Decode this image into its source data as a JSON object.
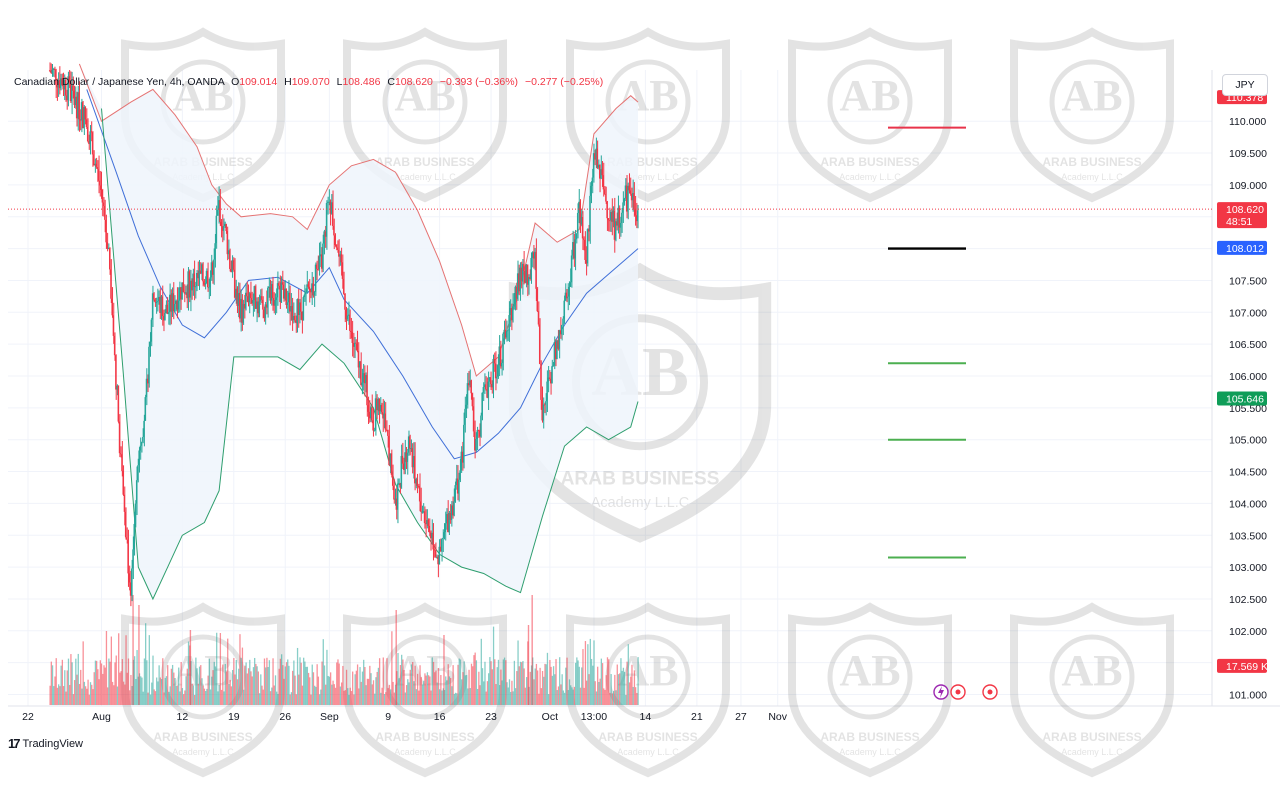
{
  "legend": {
    "symbol": "Canadian Dollar / Japanese Yen, 4h, OANDA",
    "o_label": "O",
    "o": "109.014",
    "h_label": "H",
    "h": "109.070",
    "l_label": "L",
    "l": "108.486",
    "c_label": "C",
    "c": "108.620",
    "change": "−0.393 (−0.36%)",
    "change2": "−0.277 (−0.25%)"
  },
  "currency_button": "JPY",
  "branding": {
    "tradingview": "TradingView",
    "watermark_line1": "ARAB BUSINESS",
    "watermark_line2": "Academy L.L.C"
  },
  "colors": {
    "up": "#26a69a",
    "down": "#f23645",
    "upper_band": "#e57373",
    "middle_band": "#3f6fd8",
    "lower_band": "#2e9e6e",
    "band_fill": "#eef4fb",
    "hline_red": "#e8334a",
    "hline_black": "#000000",
    "hline_green": "#4caf50",
    "blue_badge": "#2962ff",
    "green_badge": "#0f9d58"
  },
  "chart_data": {
    "type": "candlestick",
    "instrument": "Canadian Dollar / Japanese Yen",
    "timeframe": "4h",
    "source": "OANDA",
    "y_ticks": [
      "101.000",
      "101.500",
      "102.000",
      "102.500",
      "103.000",
      "103.500",
      "104.000",
      "104.500",
      "105.000",
      "105.500",
      "106.000",
      "106.500",
      "107.000",
      "107.500",
      "108.000",
      "108.500",
      "109.000",
      "109.500",
      "110.000"
    ],
    "ylim": [
      100.9,
      110.95
    ],
    "x_ticks": [
      {
        "label": "22",
        "day": 0
      },
      {
        "label": "Aug",
        "day": 10
      },
      {
        "label": "12",
        "day": 21
      },
      {
        "label": "19",
        "day": 28
      },
      {
        "label": "26",
        "day": 35
      },
      {
        "label": "Sep",
        "day": 41
      },
      {
        "label": "9",
        "day": 49
      },
      {
        "label": "16",
        "day": 56
      },
      {
        "label": "23",
        "day": 63
      },
      {
        "label": "Oct",
        "day": 71
      },
      {
        "label": "13:00",
        "day": 77
      },
      {
        "label": "14",
        "day": 84
      },
      {
        "label": "21",
        "day": 91
      },
      {
        "label": "27",
        "day": 97
      },
      {
        "label": "Nov",
        "day": 102
      }
    ],
    "price_path": [
      {
        "day": 3,
        "price": 110.8
      },
      {
        "day": 5,
        "price": 110.6
      },
      {
        "day": 8,
        "price": 110.0
      },
      {
        "day": 10,
        "price": 108.9
      },
      {
        "day": 11,
        "price": 108.0
      },
      {
        "day": 12,
        "price": 106.0
      },
      {
        "day": 13,
        "price": 104.0
      },
      {
        "day": 14,
        "price": 102.6
      },
      {
        "day": 15,
        "price": 104.8
      },
      {
        "day": 16,
        "price": 105.5
      },
      {
        "day": 17,
        "price": 107.3
      },
      {
        "day": 18,
        "price": 107.1
      },
      {
        "day": 19,
        "price": 107.0
      },
      {
        "day": 21,
        "price": 107.4
      },
      {
        "day": 23,
        "price": 107.5
      },
      {
        "day": 25,
        "price": 107.6
      },
      {
        "day": 26,
        "price": 108.7
      },
      {
        "day": 27,
        "price": 108.2
      },
      {
        "day": 28,
        "price": 107.5
      },
      {
        "day": 29,
        "price": 107.0
      },
      {
        "day": 30,
        "price": 107.3
      },
      {
        "day": 32,
        "price": 107.1
      },
      {
        "day": 34,
        "price": 107.4
      },
      {
        "day": 35,
        "price": 107.2
      },
      {
        "day": 37,
        "price": 107.0
      },
      {
        "day": 39,
        "price": 107.5
      },
      {
        "day": 40,
        "price": 107.8
      },
      {
        "day": 41,
        "price": 108.9
      },
      {
        "day": 42,
        "price": 108.1
      },
      {
        "day": 43,
        "price": 107.3
      },
      {
        "day": 44,
        "price": 106.6
      },
      {
        "day": 45,
        "price": 106.2
      },
      {
        "day": 46,
        "price": 105.8
      },
      {
        "day": 47,
        "price": 105.3
      },
      {
        "day": 48,
        "price": 105.7
      },
      {
        "day": 49,
        "price": 104.9
      },
      {
        "day": 50,
        "price": 104.0
      },
      {
        "day": 51,
        "price": 104.7
      },
      {
        "day": 52,
        "price": 105.0
      },
      {
        "day": 53,
        "price": 104.2
      },
      {
        "day": 54,
        "price": 103.8
      },
      {
        "day": 55,
        "price": 103.5
      },
      {
        "day": 56,
        "price": 103.1
      },
      {
        "day": 57,
        "price": 103.7
      },
      {
        "day": 58,
        "price": 104.1
      },
      {
        "day": 59,
        "price": 104.6
      },
      {
        "day": 60,
        "price": 106.0
      },
      {
        "day": 61,
        "price": 104.8
      },
      {
        "day": 62,
        "price": 105.7
      },
      {
        "day": 63,
        "price": 106.0
      },
      {
        "day": 64,
        "price": 106.2
      },
      {
        "day": 65,
        "price": 106.6
      },
      {
        "day": 66,
        "price": 107.2
      },
      {
        "day": 67,
        "price": 107.6
      },
      {
        "day": 68,
        "price": 107.6
      },
      {
        "day": 69,
        "price": 108.0
      },
      {
        "day": 70,
        "price": 105.3
      },
      {
        "day": 71,
        "price": 106.0
      },
      {
        "day": 72,
        "price": 106.5
      },
      {
        "day": 73,
        "price": 107.0
      },
      {
        "day": 74,
        "price": 107.8
      },
      {
        "day": 75,
        "price": 108.6
      },
      {
        "day": 76,
        "price": 107.9
      },
      {
        "day": 77,
        "price": 109.5
      },
      {
        "day": 78,
        "price": 109.1
      },
      {
        "day": 79,
        "price": 108.6
      },
      {
        "day": 80,
        "price": 108.3
      },
      {
        "day": 81,
        "price": 108.7
      },
      {
        "day": 82,
        "price": 108.9
      },
      {
        "day": 83,
        "price": 108.6
      }
    ],
    "bands": {
      "upper": [
        {
          "day": 7,
          "price": 110.9
        },
        {
          "day": 10,
          "price": 110.0
        },
        {
          "day": 14,
          "price": 110.3
        },
        {
          "day": 17,
          "price": 110.5
        },
        {
          "day": 20,
          "price": 110.1
        },
        {
          "day": 23,
          "price": 109.6
        },
        {
          "day": 25,
          "price": 109.0
        },
        {
          "day": 27,
          "price": 108.7
        },
        {
          "day": 29,
          "price": 108.5
        },
        {
          "day": 33,
          "price": 108.55
        },
        {
          "day": 36,
          "price": 108.5
        },
        {
          "day": 38,
          "price": 108.3
        },
        {
          "day": 41,
          "price": 109.0
        },
        {
          "day": 44,
          "price": 109.3
        },
        {
          "day": 47,
          "price": 109.4
        },
        {
          "day": 50,
          "price": 109.2
        },
        {
          "day": 53,
          "price": 108.6
        },
        {
          "day": 56,
          "price": 107.8
        },
        {
          "day": 59,
          "price": 106.8
        },
        {
          "day": 61,
          "price": 106.0
        },
        {
          "day": 64,
          "price": 106.3
        },
        {
          "day": 67,
          "price": 107.4
        },
        {
          "day": 69,
          "price": 108.4
        },
        {
          "day": 72,
          "price": 108.1
        },
        {
          "day": 75,
          "price": 108.3
        },
        {
          "day": 77,
          "price": 109.8
        },
        {
          "day": 80,
          "price": 110.2
        },
        {
          "day": 82,
          "price": 110.4
        },
        {
          "day": 83,
          "price": 110.3
        }
      ],
      "middle": [
        {
          "day": 8,
          "price": 110.5
        },
        {
          "day": 12,
          "price": 109.2
        },
        {
          "day": 15,
          "price": 108.2
        },
        {
          "day": 18,
          "price": 107.4
        },
        {
          "day": 21,
          "price": 106.8
        },
        {
          "day": 24,
          "price": 106.6
        },
        {
          "day": 27,
          "price": 107.0
        },
        {
          "day": 30,
          "price": 107.5
        },
        {
          "day": 34,
          "price": 107.55
        },
        {
          "day": 38,
          "price": 107.3
        },
        {
          "day": 41,
          "price": 107.7
        },
        {
          "day": 43,
          "price": 107.2
        },
        {
          "day": 47,
          "price": 106.7
        },
        {
          "day": 51,
          "price": 106.0
        },
        {
          "day": 55,
          "price": 105.2
        },
        {
          "day": 58,
          "price": 104.7
        },
        {
          "day": 61,
          "price": 104.8
        },
        {
          "day": 64,
          "price": 105.1
        },
        {
          "day": 67,
          "price": 105.5
        },
        {
          "day": 70,
          "price": 106.2
        },
        {
          "day": 73,
          "price": 106.8
        },
        {
          "day": 76,
          "price": 107.3
        },
        {
          "day": 79,
          "price": 107.6
        },
        {
          "day": 82,
          "price": 107.9
        },
        {
          "day": 83,
          "price": 108.0
        }
      ],
      "lower": [
        {
          "day": 10,
          "price": 110.2
        },
        {
          "day": 13,
          "price": 106.0
        },
        {
          "day": 15,
          "price": 103.0
        },
        {
          "day": 17,
          "price": 102.5
        },
        {
          "day": 19,
          "price": 103.0
        },
        {
          "day": 21,
          "price": 103.5
        },
        {
          "day": 24,
          "price": 103.7
        },
        {
          "day": 26,
          "price": 104.2
        },
        {
          "day": 28,
          "price": 106.3
        },
        {
          "day": 30,
          "price": 106.3
        },
        {
          "day": 34,
          "price": 106.3
        },
        {
          "day": 37,
          "price": 106.1
        },
        {
          "day": 40,
          "price": 106.5
        },
        {
          "day": 43,
          "price": 106.2
        },
        {
          "day": 47,
          "price": 105.5
        },
        {
          "day": 50,
          "price": 104.3
        },
        {
          "day": 53,
          "price": 103.7
        },
        {
          "day": 56,
          "price": 103.2
        },
        {
          "day": 59,
          "price": 103.0
        },
        {
          "day": 62,
          "price": 102.9
        },
        {
          "day": 65,
          "price": 102.7
        },
        {
          "day": 67,
          "price": 102.6
        },
        {
          "day": 70,
          "price": 103.8
        },
        {
          "day": 73,
          "price": 104.9
        },
        {
          "day": 76,
          "price": 105.2
        },
        {
          "day": 79,
          "price": 105.0
        },
        {
          "day": 82,
          "price": 105.2
        },
        {
          "day": 83,
          "price": 105.6
        }
      ]
    },
    "horizontal_levels": [
      {
        "price": 109.9,
        "color": "red",
        "from_day": 77,
        "to_day": 84
      },
      {
        "price": 108.0,
        "color": "black",
        "from_day": 77,
        "to_day": 84
      },
      {
        "price": 106.2,
        "color": "green",
        "from_day": 77,
        "to_day": 84
      },
      {
        "price": 105.0,
        "color": "green",
        "from_day": 77,
        "to_day": 84
      },
      {
        "price": 103.15,
        "color": "green",
        "from_day": 77,
        "to_day": 84
      }
    ],
    "price_badges": [
      {
        "text": "110.378",
        "price": 110.378,
        "color": "red"
      },
      {
        "text": "108.620",
        "sub": "48:51",
        "price": 108.62,
        "color": "red"
      },
      {
        "text": "108.012",
        "price": 108.012,
        "color": "blue"
      },
      {
        "text": "105.646",
        "price": 105.646,
        "color": "green"
      },
      {
        "text": "17.569 K",
        "price": 101.45,
        "color": "red"
      }
    ],
    "last_price": 108.62,
    "volume_label": "17.569 K"
  }
}
